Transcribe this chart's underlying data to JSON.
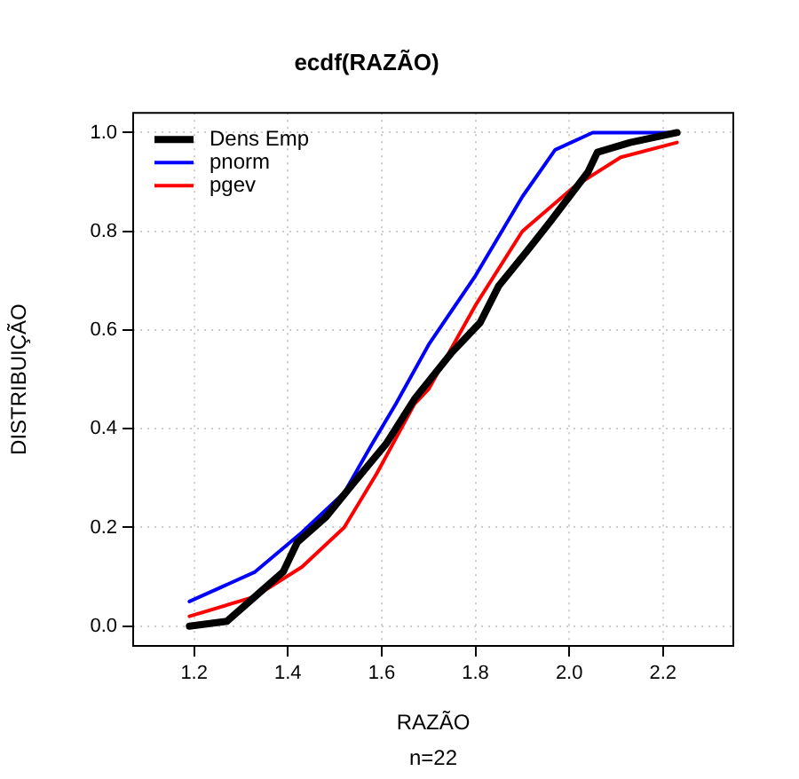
{
  "chart_data": {
    "type": "line",
    "title": "ecdf(RAZÃO)",
    "xlabel": "RAZÃO",
    "ylabel": "DISTRIBUIÇÃO",
    "annotations": [
      "n=22"
    ],
    "xlim": [
      1.07,
      2.35
    ],
    "ylim": [
      -0.04,
      1.04
    ],
    "xticks": [
      1.2,
      1.4,
      1.6,
      1.8,
      {
        "value": 2,
        "label": "2.0"
      },
      2.2
    ],
    "yticks": [
      {
        "value": 0,
        "label": "0.0"
      },
      0.2,
      0.4,
      0.6,
      0.8,
      {
        "value": 1,
        "label": "1.0"
      }
    ],
    "grid": true,
    "legend": "top left",
    "marker": "none",
    "line_style": "solid",
    "series": [
      {
        "name": "Dens Emp",
        "color": "#000000",
        "x": [
          1.19,
          1.27,
          1.33,
          1.39,
          1.42,
          1.48,
          1.54,
          1.61,
          1.67,
          1.75,
          1.81,
          1.85,
          1.91,
          1.96,
          2.0,
          2.04,
          2.06,
          2.13,
          2.23
        ],
        "values": [
          0.0,
          0.01,
          0.06,
          0.11,
          0.17,
          0.22,
          0.29,
          0.37,
          0.46,
          0.555,
          0.615,
          0.69,
          0.76,
          0.82,
          0.87,
          0.92,
          0.96,
          0.98,
          1.0
        ]
      },
      {
        "name": "pnorm",
        "color": "#0000ff",
        "x": [
          1.19,
          1.33,
          1.43,
          1.52,
          1.58,
          1.63,
          1.7,
          1.8,
          1.9,
          1.97,
          2.05,
          2.23
        ],
        "values": [
          0.05,
          0.11,
          0.19,
          0.27,
          0.37,
          0.45,
          0.57,
          0.71,
          0.87,
          0.965,
          1.0,
          1.0
        ]
      },
      {
        "name": "pgev",
        "color": "#ff0000",
        "x": [
          1.19,
          1.33,
          1.43,
          1.52,
          1.59,
          1.67,
          1.7,
          1.8,
          1.9,
          2.01,
          2.11,
          2.23
        ],
        "values": [
          0.02,
          0.06,
          0.12,
          0.2,
          0.31,
          0.45,
          0.48,
          0.65,
          0.8,
          0.89,
          0.95,
          0.98
        ]
      }
    ]
  }
}
